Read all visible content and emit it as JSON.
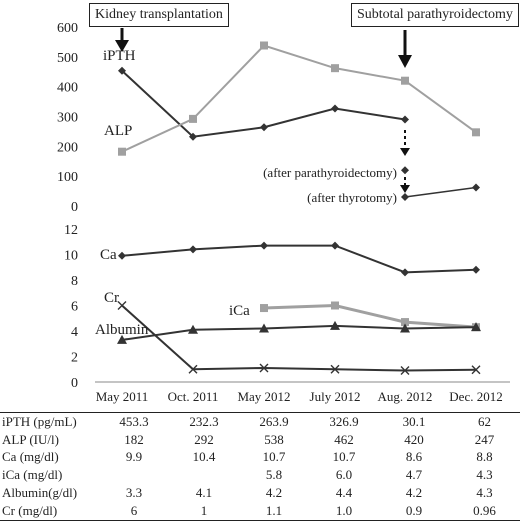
{
  "annotations": {
    "kidney": "Kidney transplantation",
    "parathyroid": "Subtotal parathyroidectomy",
    "after_parathyroidectomy": "(after parathyroidectomy)",
    "after_thyrotomy": "(after thyrotomy)"
  },
  "table": {
    "rows": [
      {
        "label": "iPTH (pg/mL)",
        "cells": [
          "453.3",
          "232.3",
          "263.9",
          "326.9",
          "30.1",
          "62"
        ]
      },
      {
        "label": "ALP    (IU/l)",
        "cells": [
          "182",
          "292",
          "538",
          "462",
          "420",
          "247"
        ]
      },
      {
        "label": "Ca     (mg/dl)",
        "cells": [
          "9.9",
          "10.4",
          "10.7",
          "10.7",
          "8.6",
          "8.8"
        ]
      },
      {
        "label": "iCa      (mg/dl)",
        "cells": [
          "",
          "",
          "5.8",
          "6.0",
          "4.7",
          "4.3"
        ]
      },
      {
        "label": "Albumin(g/dl)",
        "cells": [
          "3.3",
          "4.1",
          "4.2",
          "4.4",
          "4.2",
          "4.3"
        ]
      },
      {
        "label": "Cr      (mg/dl)",
        "cells": [
          "6",
          "1",
          "1.1",
          "1.0",
          "0.9",
          "0.96"
        ]
      }
    ]
  },
  "colors": {
    "dark": "#333333",
    "light": "#a0a0a0",
    "axis": "#888888"
  },
  "chart_data": [
    {
      "type": "line",
      "categories": [
        "May 2011",
        "Oct. 2011",
        "May 2012",
        "July 2012",
        "Aug. 2012",
        "Dec. 2012"
      ],
      "ylim": [
        0,
        600
      ],
      "yticks": [
        0,
        100,
        200,
        300,
        400,
        500,
        600
      ],
      "series": [
        {
          "name": "iPTH",
          "marker": "diamond",
          "color": "dark",
          "segments": [
            [
              453.3,
              232.3,
              263.9,
              326.9,
              290,
              null
            ]
          ],
          "extra_points": [
            [
              4,
              120
            ],
            [
              4,
              30.1
            ],
            [
              5,
              62
            ]
          ],
          "extra_line": [
            [
              4,
              30.1
            ],
            [
              5,
              62
            ]
          ]
        },
        {
          "name": "ALP",
          "marker": "square",
          "color": "light",
          "segments": [
            [
              182,
              292,
              538,
              462,
              420,
              247
            ]
          ]
        }
      ]
    },
    {
      "type": "line",
      "categories": [
        "May 2011",
        "Oct. 2011",
        "May 2012",
        "July 2012",
        "Aug. 2012",
        "Dec. 2012"
      ],
      "ylim": [
        0,
        12
      ],
      "yticks": [
        0,
        2,
        4,
        6,
        8,
        10,
        12
      ],
      "series": [
        {
          "name": "Ca",
          "marker": "diamond",
          "color": "dark",
          "values": [
            9.9,
            10.4,
            10.7,
            10.7,
            8.6,
            8.8
          ]
        },
        {
          "name": "iCa",
          "marker": "square",
          "color": "light",
          "values": [
            null,
            null,
            5.8,
            6.0,
            4.7,
            4.3
          ]
        },
        {
          "name": "Albumin",
          "marker": "triangle",
          "color": "dark",
          "values": [
            3.3,
            4.1,
            4.2,
            4.4,
            4.2,
            4.3
          ]
        },
        {
          "name": "Cr",
          "marker": "x",
          "color": "dark",
          "values": [
            6,
            1,
            1.1,
            1.0,
            0.9,
            0.96
          ]
        }
      ]
    }
  ]
}
